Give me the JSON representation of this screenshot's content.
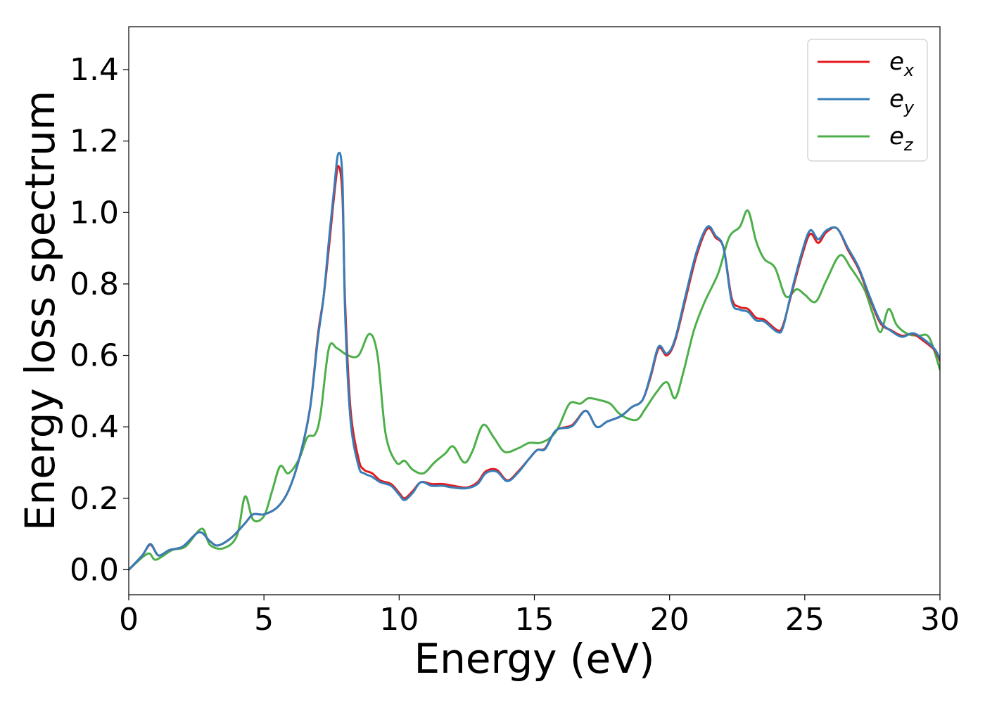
{
  "chart_data": {
    "type": "line",
    "xlabel": "Energy (eV)",
    "ylabel": "Energy loss spectrum",
    "xlim": [
      0,
      30
    ],
    "ylim": [
      -0.07,
      1.52
    ],
    "x_ticks": [
      0,
      5,
      10,
      15,
      20,
      25,
      30
    ],
    "x_tick_labels": [
      "0",
      "5",
      "10",
      "15",
      "20",
      "25",
      "30"
    ],
    "y_ticks": [
      0.0,
      0.2,
      0.4,
      0.6,
      0.8,
      1.0,
      1.2,
      1.4
    ],
    "y_tick_labels": [
      "0.0",
      "0.2",
      "0.4",
      "0.6",
      "0.8",
      "1.0",
      "1.2",
      "1.4"
    ],
    "grid": false,
    "legend_position": "top-right",
    "series": [
      {
        "name": "x",
        "legend_base": "e",
        "legend_sub": "x",
        "color": "#e41a1c",
        "points": [
          [
            0,
            0.0
          ],
          [
            0.5,
            0.04
          ],
          [
            0.8,
            0.07
          ],
          [
            1.1,
            0.04
          ],
          [
            1.5,
            0.055
          ],
          [
            2.0,
            0.065
          ],
          [
            2.6,
            0.105
          ],
          [
            3.0,
            0.08
          ],
          [
            3.3,
            0.068
          ],
          [
            3.8,
            0.09
          ],
          [
            4.3,
            0.13
          ],
          [
            4.6,
            0.155
          ],
          [
            5.0,
            0.155
          ],
          [
            5.5,
            0.175
          ],
          [
            5.9,
            0.22
          ],
          [
            6.3,
            0.31
          ],
          [
            6.7,
            0.45
          ],
          [
            7.0,
            0.66
          ],
          [
            7.2,
            0.76
          ],
          [
            7.4,
            0.9
          ],
          [
            7.6,
            1.05
          ],
          [
            7.75,
            1.13
          ],
          [
            7.9,
            1.05
          ],
          [
            8.0,
            0.75
          ],
          [
            8.2,
            0.45
          ],
          [
            8.5,
            0.31
          ],
          [
            8.7,
            0.28
          ],
          [
            9.0,
            0.27
          ],
          [
            9.3,
            0.25
          ],
          [
            9.7,
            0.24
          ],
          [
            10.0,
            0.215
          ],
          [
            10.2,
            0.2
          ],
          [
            10.5,
            0.22
          ],
          [
            10.8,
            0.245
          ],
          [
            11.2,
            0.24
          ],
          [
            11.6,
            0.24
          ],
          [
            12.0,
            0.235
          ],
          [
            12.5,
            0.23
          ],
          [
            12.9,
            0.245
          ],
          [
            13.2,
            0.275
          ],
          [
            13.6,
            0.28
          ],
          [
            14.0,
            0.25
          ],
          [
            14.4,
            0.275
          ],
          [
            14.8,
            0.31
          ],
          [
            15.1,
            0.335
          ],
          [
            15.4,
            0.34
          ],
          [
            15.8,
            0.39
          ],
          [
            16.4,
            0.405
          ],
          [
            16.9,
            0.445
          ],
          [
            17.3,
            0.4
          ],
          [
            17.7,
            0.415
          ],
          [
            18.2,
            0.43
          ],
          [
            18.6,
            0.455
          ],
          [
            19.0,
            0.475
          ],
          [
            19.3,
            0.54
          ],
          [
            19.6,
            0.62
          ],
          [
            19.9,
            0.6
          ],
          [
            20.2,
            0.64
          ],
          [
            20.6,
            0.76
          ],
          [
            21.0,
            0.88
          ],
          [
            21.4,
            0.955
          ],
          [
            21.7,
            0.93
          ],
          [
            22.0,
            0.9
          ],
          [
            22.3,
            0.76
          ],
          [
            22.6,
            0.735
          ],
          [
            22.9,
            0.73
          ],
          [
            23.2,
            0.705
          ],
          [
            23.5,
            0.7
          ],
          [
            24.0,
            0.67
          ],
          [
            24.2,
            0.685
          ],
          [
            24.5,
            0.77
          ],
          [
            24.9,
            0.88
          ],
          [
            25.2,
            0.94
          ],
          [
            25.5,
            0.915
          ],
          [
            25.8,
            0.945
          ],
          [
            26.2,
            0.955
          ],
          [
            26.6,
            0.895
          ],
          [
            27.0,
            0.84
          ],
          [
            27.4,
            0.76
          ],
          [
            27.8,
            0.69
          ],
          [
            28.2,
            0.67
          ],
          [
            28.6,
            0.655
          ],
          [
            29.0,
            0.66
          ],
          [
            29.4,
            0.64
          ],
          [
            29.8,
            0.615
          ],
          [
            30.0,
            0.585
          ]
        ]
      },
      {
        "name": "y",
        "legend_base": "e",
        "legend_sub": "y",
        "color": "#377eb8",
        "points": [
          [
            0,
            0.0
          ],
          [
            0.5,
            0.04
          ],
          [
            0.8,
            0.072
          ],
          [
            1.1,
            0.04
          ],
          [
            1.5,
            0.055
          ],
          [
            2.0,
            0.065
          ],
          [
            2.6,
            0.105
          ],
          [
            3.0,
            0.08
          ],
          [
            3.3,
            0.068
          ],
          [
            3.8,
            0.09
          ],
          [
            4.3,
            0.13
          ],
          [
            4.6,
            0.155
          ],
          [
            5.0,
            0.155
          ],
          [
            5.5,
            0.175
          ],
          [
            5.9,
            0.22
          ],
          [
            6.3,
            0.31
          ],
          [
            6.7,
            0.45
          ],
          [
            7.0,
            0.65
          ],
          [
            7.2,
            0.76
          ],
          [
            7.4,
            0.92
          ],
          [
            7.6,
            1.07
          ],
          [
            7.75,
            1.165
          ],
          [
            7.9,
            1.1
          ],
          [
            8.0,
            0.72
          ],
          [
            8.2,
            0.42
          ],
          [
            8.5,
            0.29
          ],
          [
            8.7,
            0.27
          ],
          [
            9.0,
            0.26
          ],
          [
            9.3,
            0.245
          ],
          [
            9.7,
            0.235
          ],
          [
            10.0,
            0.21
          ],
          [
            10.2,
            0.195
          ],
          [
            10.5,
            0.215
          ],
          [
            10.8,
            0.245
          ],
          [
            11.2,
            0.235
          ],
          [
            11.6,
            0.235
          ],
          [
            12.0,
            0.23
          ],
          [
            12.5,
            0.228
          ],
          [
            12.9,
            0.24
          ],
          [
            13.2,
            0.27
          ],
          [
            13.6,
            0.275
          ],
          [
            14.0,
            0.248
          ],
          [
            14.4,
            0.272
          ],
          [
            14.8,
            0.31
          ],
          [
            15.1,
            0.335
          ],
          [
            15.4,
            0.338
          ],
          [
            15.8,
            0.39
          ],
          [
            16.4,
            0.402
          ],
          [
            16.9,
            0.445
          ],
          [
            17.3,
            0.4
          ],
          [
            17.7,
            0.415
          ],
          [
            18.2,
            0.43
          ],
          [
            18.6,
            0.455
          ],
          [
            19.0,
            0.475
          ],
          [
            19.3,
            0.545
          ],
          [
            19.6,
            0.625
          ],
          [
            19.9,
            0.605
          ],
          [
            20.2,
            0.645
          ],
          [
            20.6,
            0.77
          ],
          [
            21.0,
            0.89
          ],
          [
            21.4,
            0.96
          ],
          [
            21.7,
            0.935
          ],
          [
            22.0,
            0.9
          ],
          [
            22.3,
            0.75
          ],
          [
            22.6,
            0.728
          ],
          [
            22.9,
            0.722
          ],
          [
            23.2,
            0.698
          ],
          [
            23.5,
            0.695
          ],
          [
            24.0,
            0.665
          ],
          [
            24.2,
            0.68
          ],
          [
            24.5,
            0.775
          ],
          [
            24.9,
            0.89
          ],
          [
            25.2,
            0.95
          ],
          [
            25.5,
            0.925
          ],
          [
            25.8,
            0.95
          ],
          [
            26.2,
            0.955
          ],
          [
            26.6,
            0.9
          ],
          [
            27.0,
            0.845
          ],
          [
            27.4,
            0.765
          ],
          [
            27.8,
            0.695
          ],
          [
            28.2,
            0.668
          ],
          [
            28.6,
            0.652
          ],
          [
            29.0,
            0.662
          ],
          [
            29.4,
            0.645
          ],
          [
            29.8,
            0.618
          ],
          [
            30.0,
            0.59
          ]
        ]
      },
      {
        "name": "z",
        "legend_base": "e",
        "legend_sub": "z",
        "color": "#4daf4a",
        "points": [
          [
            0,
            0.0
          ],
          [
            0.7,
            0.045
          ],
          [
            1.0,
            0.028
          ],
          [
            1.6,
            0.055
          ],
          [
            2.1,
            0.065
          ],
          [
            2.7,
            0.115
          ],
          [
            3.0,
            0.07
          ],
          [
            3.5,
            0.06
          ],
          [
            4.0,
            0.095
          ],
          [
            4.3,
            0.205
          ],
          [
            4.6,
            0.14
          ],
          [
            5.0,
            0.15
          ],
          [
            5.3,
            0.22
          ],
          [
            5.6,
            0.29
          ],
          [
            5.9,
            0.27
          ],
          [
            6.3,
            0.31
          ],
          [
            6.6,
            0.37
          ],
          [
            6.9,
            0.38
          ],
          [
            7.1,
            0.44
          ],
          [
            7.4,
            0.62
          ],
          [
            7.7,
            0.62
          ],
          [
            8.1,
            0.6
          ],
          [
            8.5,
            0.6
          ],
          [
            8.9,
            0.66
          ],
          [
            9.2,
            0.6
          ],
          [
            9.5,
            0.38
          ],
          [
            9.9,
            0.3
          ],
          [
            10.2,
            0.305
          ],
          [
            10.5,
            0.28
          ],
          [
            10.9,
            0.27
          ],
          [
            11.3,
            0.3
          ],
          [
            11.7,
            0.325
          ],
          [
            12.0,
            0.345
          ],
          [
            12.4,
            0.3
          ],
          [
            12.7,
            0.33
          ],
          [
            13.1,
            0.405
          ],
          [
            13.5,
            0.37
          ],
          [
            13.9,
            0.33
          ],
          [
            14.4,
            0.34
          ],
          [
            14.8,
            0.355
          ],
          [
            15.2,
            0.355
          ],
          [
            15.6,
            0.37
          ],
          [
            15.9,
            0.4
          ],
          [
            16.3,
            0.465
          ],
          [
            16.7,
            0.465
          ],
          [
            17.0,
            0.48
          ],
          [
            17.4,
            0.475
          ],
          [
            17.8,
            0.465
          ],
          [
            18.1,
            0.44
          ],
          [
            18.4,
            0.425
          ],
          [
            18.8,
            0.42
          ],
          [
            19.1,
            0.45
          ],
          [
            19.5,
            0.495
          ],
          [
            19.9,
            0.525
          ],
          [
            20.2,
            0.48
          ],
          [
            20.5,
            0.55
          ],
          [
            20.9,
            0.67
          ],
          [
            21.3,
            0.75
          ],
          [
            21.8,
            0.83
          ],
          [
            22.2,
            0.93
          ],
          [
            22.6,
            0.96
          ],
          [
            22.9,
            1.005
          ],
          [
            23.2,
            0.92
          ],
          [
            23.5,
            0.87
          ],
          [
            23.9,
            0.845
          ],
          [
            24.3,
            0.765
          ],
          [
            24.7,
            0.785
          ],
          [
            25.0,
            0.77
          ],
          [
            25.4,
            0.75
          ],
          [
            25.8,
            0.81
          ],
          [
            26.3,
            0.88
          ],
          [
            26.7,
            0.845
          ],
          [
            27.2,
            0.785
          ],
          [
            27.5,
            0.72
          ],
          [
            27.8,
            0.665
          ],
          [
            28.1,
            0.73
          ],
          [
            28.4,
            0.685
          ],
          [
            28.8,
            0.66
          ],
          [
            29.2,
            0.655
          ],
          [
            29.6,
            0.65
          ],
          [
            30.0,
            0.56
          ]
        ]
      }
    ]
  }
}
